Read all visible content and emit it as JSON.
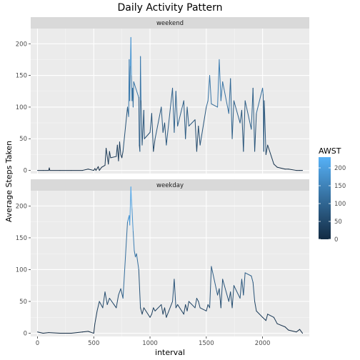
{
  "chart_data": {
    "type": "line",
    "title": "Daily Activity Pattern",
    "xlabel": "interval",
    "ylabel": "Average Steps Taken",
    "xlim": [
      -60,
      2415
    ],
    "ylim": [
      -5,
      224
    ],
    "x_ticks": [
      0,
      500,
      1000,
      1500,
      2000
    ],
    "y_ticks": [
      0,
      50,
      100,
      150,
      200
    ],
    "grid": true,
    "legend": {
      "title": "AWST",
      "placement": "right",
      "range": [
        0,
        230
      ],
      "ticks": [
        0,
        50,
        100,
        150,
        200
      ],
      "low_color": "#132b43",
      "high_color": "#56b1f7"
    },
    "panels": [
      {
        "name": "weekend",
        "x": [
          0,
          50,
          100,
          105,
          110,
          200,
          300,
          400,
          450,
          500,
          510,
          520,
          540,
          550,
          570,
          600,
          610,
          630,
          640,
          650,
          700,
          710,
          720,
          730,
          740,
          750,
          760,
          800,
          810,
          815,
          820,
          825,
          830,
          835,
          840,
          845,
          850,
          855,
          900,
          905,
          910,
          915,
          920,
          930,
          945,
          950,
          1000,
          1015,
          1030,
          1045,
          1100,
          1115,
          1130,
          1145,
          1200,
          1215,
          1230,
          1245,
          1300,
          1315,
          1330,
          1345,
          1400,
          1415,
          1430,
          1445,
          1500,
          1515,
          1530,
          1545,
          1600,
          1615,
          1630,
          1645,
          1700,
          1715,
          1730,
          1745,
          1800,
          1815,
          1830,
          1845,
          1900,
          1915,
          1930,
          1945,
          2000,
          2005,
          2010,
          2015,
          2030,
          2045,
          2100,
          2130,
          2200,
          2230,
          2300,
          2330,
          2355
        ],
        "y": [
          0,
          0,
          0,
          4,
          0,
          0,
          0,
          0,
          2,
          0,
          3,
          0,
          6,
          0,
          5,
          8,
          35,
          10,
          30,
          20,
          22,
          40,
          15,
          45,
          25,
          20,
          30,
          100,
          85,
          175,
          110,
          165,
          210,
          150,
          110,
          130,
          100,
          140,
          115,
          40,
          30,
          180,
          110,
          40,
          95,
          50,
          60,
          90,
          30,
          50,
          100,
          60,
          75,
          40,
          130,
          60,
          125,
          70,
          110,
          50,
          100,
          70,
          80,
          30,
          70,
          40,
          100,
          110,
          150,
          105,
          100,
          175,
          110,
          140,
          90,
          145,
          50,
          110,
          75,
          95,
          30,
          110,
          65,
          130,
          30,
          90,
          130,
          120,
          30,
          110,
          25,
          40,
          10,
          5,
          2,
          2,
          0,
          0,
          0
        ]
      },
      {
        "name": "weekday",
        "x": [
          0,
          50,
          100,
          200,
          300,
          400,
          450,
          500,
          510,
          530,
          550,
          580,
          600,
          620,
          640,
          660,
          680,
          700,
          720,
          740,
          760,
          800,
          815,
          820,
          830,
          835,
          840,
          850,
          860,
          870,
          880,
          900,
          915,
          930,
          945,
          1000,
          1015,
          1030,
          1045,
          1100,
          1115,
          1130,
          1145,
          1200,
          1215,
          1230,
          1245,
          1300,
          1315,
          1330,
          1345,
          1400,
          1415,
          1430,
          1445,
          1500,
          1515,
          1530,
          1545,
          1600,
          1615,
          1630,
          1645,
          1700,
          1715,
          1730,
          1745,
          1800,
          1815,
          1830,
          1845,
          1900,
          1915,
          1930,
          1945,
          2000,
          2030,
          2045,
          2100,
          2130,
          2200,
          2230,
          2300,
          2330,
          2355
        ],
        "y": [
          2,
          0,
          1,
          0,
          0,
          2,
          3,
          0,
          15,
          35,
          50,
          40,
          65,
          45,
          55,
          50,
          45,
          40,
          60,
          70,
          55,
          175,
          185,
          170,
          230,
          210,
          195,
          160,
          130,
          120,
          125,
          100,
          40,
          30,
          40,
          25,
          30,
          40,
          35,
          45,
          30,
          40,
          25,
          50,
          85,
          40,
          45,
          30,
          45,
          35,
          50,
          40,
          55,
          50,
          40,
          35,
          45,
          40,
          105,
          60,
          70,
          40,
          85,
          50,
          65,
          40,
          75,
          55,
          85,
          60,
          95,
          90,
          80,
          50,
          35,
          25,
          20,
          30,
          25,
          15,
          10,
          5,
          2,
          6,
          0
        ]
      }
    ]
  }
}
